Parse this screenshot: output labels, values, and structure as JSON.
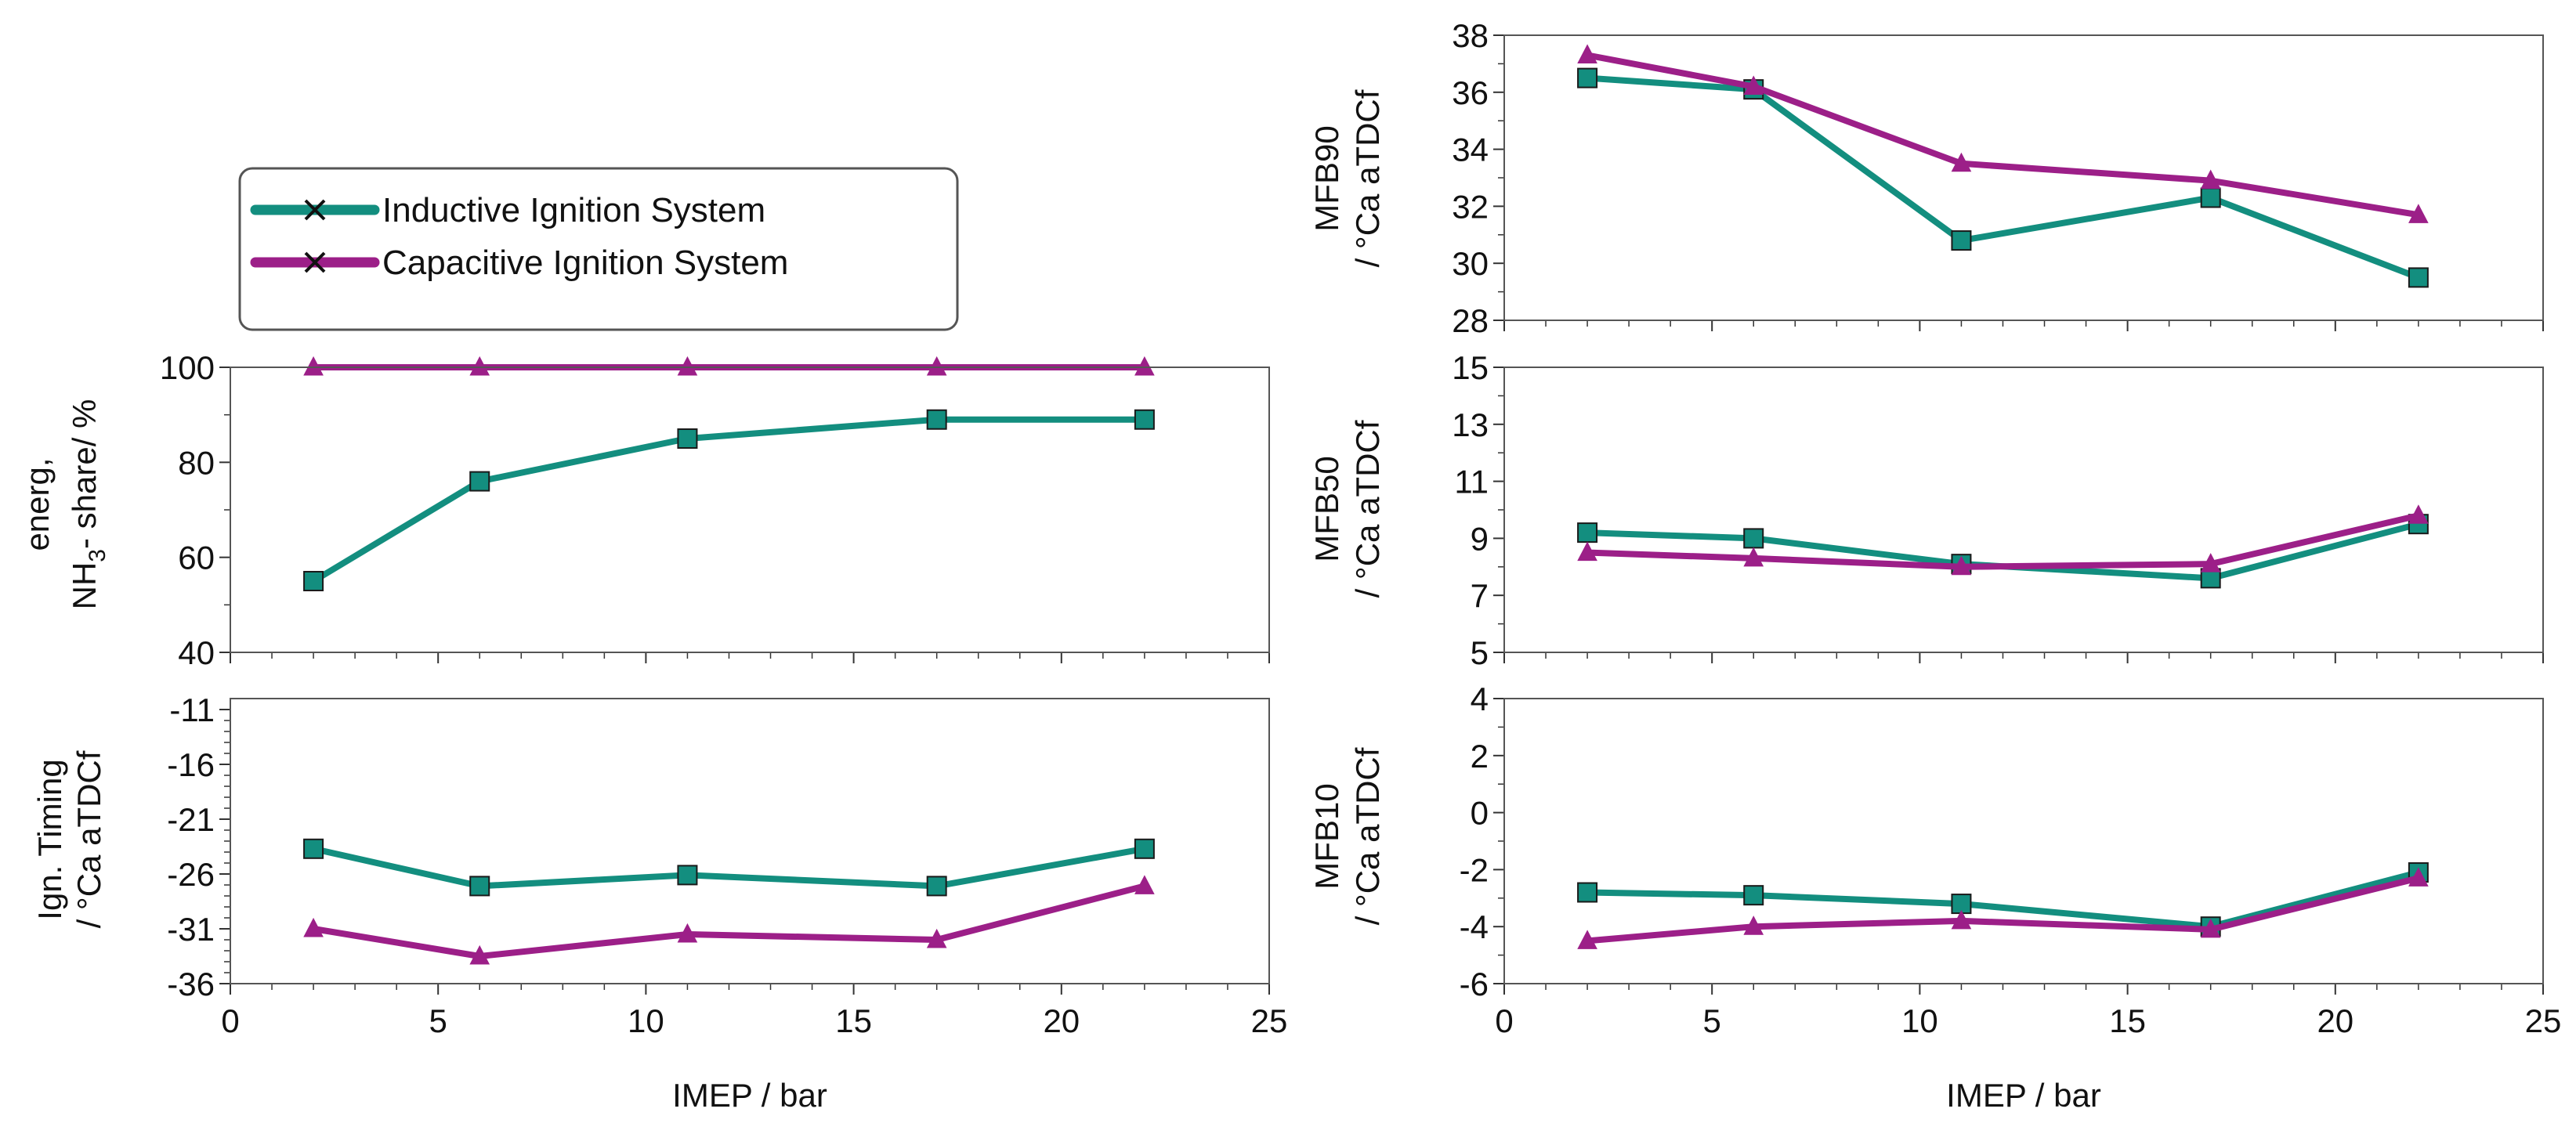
{
  "colors": {
    "inductive": "#138e7f",
    "capacitive": "#9c1f88",
    "axis": "#333333",
    "frame": "#555555"
  },
  "legend": {
    "items": [
      {
        "label": "Inductive Ignition System",
        "color": "#138e7f"
      },
      {
        "label": "Capacitive Ignition System",
        "color": "#9c1f88"
      }
    ]
  },
  "chart_data": [
    {
      "type": "line",
      "id": "nh3",
      "ylabel_lines": [
        "energ,",
        "NH3- share/ %"
      ],
      "ylim": [
        40,
        100
      ],
      "yticks": [
        40,
        60,
        80,
        100
      ],
      "ytick_labels": [
        "40",
        "60",
        "80",
        "100"
      ],
      "xlim": [
        0,
        25
      ],
      "x": [
        2,
        6,
        11,
        17,
        22
      ],
      "series": [
        {
          "name": "Inductive Ignition System",
          "marker": "square",
          "values": [
            55,
            76,
            85,
            89,
            89
          ]
        },
        {
          "name": "Capacitive Ignition System",
          "marker": "triangle",
          "values": [
            100,
            100,
            100,
            100,
            100
          ]
        }
      ]
    },
    {
      "type": "line",
      "id": "ign",
      "ylabel_lines": [
        "Ign. Timing",
        "/ °Ca aTDCf"
      ],
      "ylim": [
        -36,
        -10
      ],
      "yticks": [
        -36,
        -31,
        -26,
        -21,
        -16,
        -11
      ],
      "ytick_labels": [
        "-36",
        "-31",
        "-26",
        "-21",
        "-16",
        "-11"
      ],
      "xlim": [
        0,
        25
      ],
      "xticks": [
        0,
        5,
        10,
        15,
        20,
        25
      ],
      "xtick_labels": [
        "0",
        "5",
        "10",
        "15",
        "20",
        "25"
      ],
      "xlabel": "IMEP / bar",
      "x": [
        2,
        6,
        11,
        17,
        22
      ],
      "series": [
        {
          "name": "Inductive Ignition System",
          "marker": "square",
          "values": [
            -23.7,
            -27.1,
            -26.1,
            -27.1,
            -23.7
          ]
        },
        {
          "name": "Capacitive Ignition System",
          "marker": "triangle",
          "values": [
            -31,
            -33.5,
            -31.5,
            -32,
            -27.1
          ]
        }
      ]
    },
    {
      "type": "line",
      "id": "mfb90",
      "ylabel_lines": [
        "MFB90",
        "/ °Ca aTDCf"
      ],
      "ylim": [
        28,
        38
      ],
      "yticks": [
        28,
        30,
        32,
        34,
        36,
        38
      ],
      "ytick_labels": [
        "28",
        "30",
        "32",
        "34",
        "36",
        "38"
      ],
      "xlim": [
        0,
        25
      ],
      "x": [
        2,
        6,
        11,
        17,
        22
      ],
      "series": [
        {
          "name": "Inductive Ignition System",
          "marker": "square",
          "values": [
            36.5,
            36.1,
            30.8,
            32.3,
            29.5
          ]
        },
        {
          "name": "Capacitive Ignition System",
          "marker": "triangle",
          "values": [
            37.3,
            36.2,
            33.5,
            32.9,
            31.7
          ]
        }
      ]
    },
    {
      "type": "line",
      "id": "mfb50",
      "ylabel_lines": [
        "MFB50",
        "/ °Ca aTDCf"
      ],
      "ylim": [
        5,
        15
      ],
      "yticks": [
        5,
        7,
        9,
        11,
        13,
        15
      ],
      "ytick_labels": [
        "5",
        "7",
        "9",
        "11",
        "13",
        "15"
      ],
      "xlim": [
        0,
        25
      ],
      "x": [
        2,
        6,
        11,
        17,
        22
      ],
      "series": [
        {
          "name": "Inductive Ignition System",
          "marker": "square",
          "values": [
            9.2,
            9.0,
            8.1,
            7.6,
            9.5
          ]
        },
        {
          "name": "Capacitive Ignition System",
          "marker": "triangle",
          "values": [
            8.5,
            8.3,
            8.0,
            8.1,
            9.8
          ]
        }
      ]
    },
    {
      "type": "line",
      "id": "mfb10",
      "ylabel_lines": [
        "MFB10",
        "/ °Ca aTDCf"
      ],
      "ylim": [
        -6,
        4
      ],
      "yticks": [
        -6,
        -4,
        -2,
        0,
        2,
        4
      ],
      "ytick_labels": [
        "-6",
        "-4",
        "-2",
        "0",
        "2",
        "4"
      ],
      "xlim": [
        0,
        25
      ],
      "xticks": [
        0,
        5,
        10,
        15,
        20,
        25
      ],
      "xtick_labels": [
        "0",
        "5",
        "10",
        "15",
        "20",
        "25"
      ],
      "xlabel": "IMEP / bar",
      "x": [
        2,
        6,
        11,
        17,
        22
      ],
      "series": [
        {
          "name": "Inductive Ignition System",
          "marker": "square",
          "values": [
            -2.8,
            -2.9,
            -3.2,
            -4.0,
            -2.1
          ]
        },
        {
          "name": "Capacitive Ignition System",
          "marker": "triangle",
          "values": [
            -4.5,
            -4.0,
            -3.8,
            -4.1,
            -2.3
          ]
        }
      ]
    }
  ]
}
